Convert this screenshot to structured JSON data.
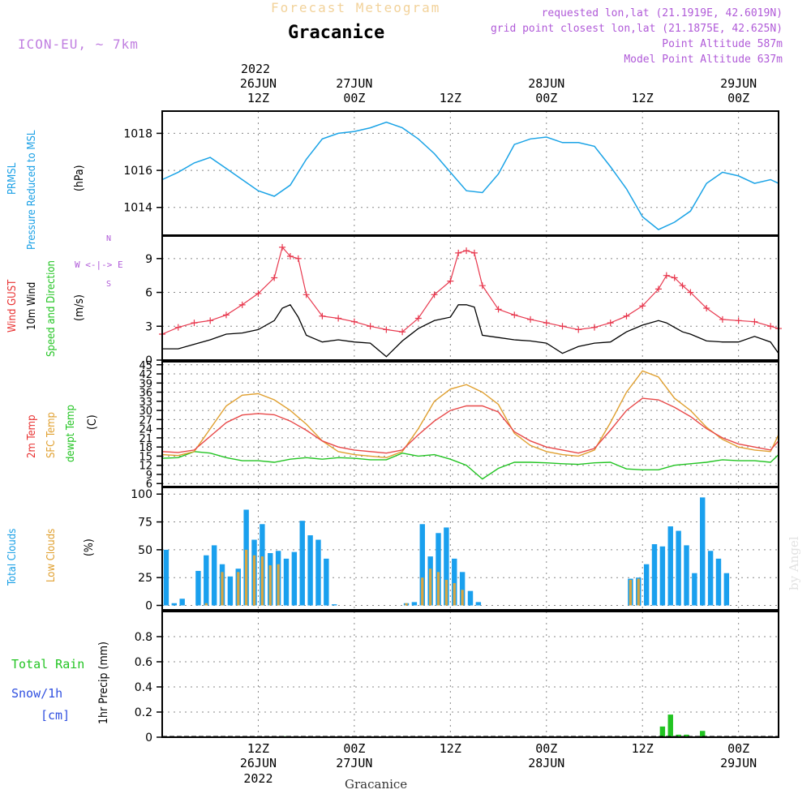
{
  "header": {
    "subtitle": "Forecast Meteogram",
    "station": "Gracanice",
    "model": "ICON-EU, ~ 7km",
    "info": [
      "requested lon,lat (21.1919E, 42.6019N)",
      "grid point closest lon,lat (21.1875E, 42.625N)",
      "Point Altitude 587m",
      "Model Point Altitude 637m"
    ],
    "watermark": "by Angel",
    "footer": "Gracanice"
  },
  "time_axis": {
    "top_year": "2022",
    "ticks": [
      {
        "h": 12,
        "time": "12Z",
        "date": "26JUN",
        "year": "2022"
      },
      {
        "h": 24,
        "time": "00Z",
        "date": "27JUN",
        "year": ""
      },
      {
        "h": 36,
        "time": "12Z",
        "date": "",
        "year": ""
      },
      {
        "h": 48,
        "time": "00Z",
        "date": "28JUN",
        "year": ""
      },
      {
        "h": 60,
        "time": "12Z",
        "date": "",
        "year": ""
      },
      {
        "h": 72,
        "time": "00Z",
        "date": "29JUN",
        "year": ""
      }
    ],
    "range_hours": [
      0,
      77
    ]
  },
  "panel_labels": {
    "pressure": {
      "name1": "PRMSL",
      "name2": "Pressure Reduced to MSL",
      "unit": "(hPa)"
    },
    "wind": {
      "gust": "Wind GUST",
      "wind": "10m Wind",
      "dir": "Speed and Direction",
      "unit": "(m/s)",
      "compass_ns": "N",
      "compass_we": "W <-|-> E",
      "compass_s": "S"
    },
    "temp": {
      "t2m": "2m Temp",
      "sfc": "SFC Temp",
      "dew": "dewpt Temp",
      "unit": "(C)"
    },
    "clouds": {
      "total": "Total Clouds",
      "low": "Low Clouds",
      "unit": "(%)"
    },
    "precip": {
      "rain": "Total  Rain",
      "snow": "Snow/1h",
      "snow_unit": "[cm]",
      "axis": "1hr Precip (mm)"
    }
  },
  "colors": {
    "pressure": "#1aa3e6",
    "gust": "#e8384e",
    "wind": "#000000",
    "t2m": "#e84848",
    "sfc": "#e0a030",
    "dew": "#22c422",
    "total_clouds": "#1aa0ee",
    "low_clouds": "#d9a640",
    "rain": "#22c422",
    "snow": "#3050e0",
    "grid": "#888888",
    "label_green": "#22c422",
    "label_blue": "#1aa0e6",
    "label_red": "#e83030",
    "label_orange": "#e0a030",
    "label_purple": "#b05ad8"
  },
  "chart_data": [
    {
      "type": "line",
      "id": "pressure",
      "title": "PRMSL Pressure Reduced to MSL",
      "ylabel": "(hPa)",
      "ylim": [
        1012.5,
        1019.2
      ],
      "yticks": [
        1014,
        1016,
        1018
      ],
      "x": [
        0,
        2,
        4,
        6,
        8,
        10,
        12,
        14,
        16,
        18,
        20,
        22,
        24,
        26,
        28,
        30,
        32,
        34,
        36,
        38,
        40,
        42,
        44,
        46,
        48,
        50,
        52,
        54,
        56,
        58,
        60,
        62,
        64,
        66,
        68,
        70,
        72,
        74,
        76,
        77
      ],
      "series": [
        {
          "name": "PRMSL",
          "values": [
            1015.5,
            1015.9,
            1016.4,
            1016.7,
            1016.1,
            1015.5,
            1014.9,
            1014.6,
            1015.2,
            1016.6,
            1017.7,
            1018.0,
            1018.1,
            1018.3,
            1018.6,
            1018.3,
            1017.7,
            1016.9,
            1015.9,
            1014.9,
            1014.8,
            1015.8,
            1017.4,
            1017.7,
            1017.8,
            1017.5,
            1017.5,
            1017.3,
            1016.2,
            1015.0,
            1013.5,
            1012.8,
            1013.2,
            1013.8,
            1015.3,
            1015.9,
            1015.7,
            1015.3,
            1015.5,
            1015.3
          ]
        }
      ]
    },
    {
      "type": "line",
      "id": "wind",
      "title": "Wind GUST / 10m Wind",
      "ylabel": "(m/s)",
      "ylim": [
        0,
        11
      ],
      "yticks": [
        0,
        3,
        6,
        9
      ],
      "x": [
        0,
        2,
        4,
        6,
        8,
        10,
        12,
        14,
        15,
        16,
        17,
        18,
        20,
        22,
        24,
        26,
        28,
        30,
        32,
        34,
        36,
        37,
        38,
        39,
        40,
        42,
        44,
        46,
        48,
        50,
        52,
        54,
        56,
        58,
        60,
        62,
        63,
        64,
        65,
        66,
        68,
        70,
        72,
        74,
        76,
        77
      ],
      "series": [
        {
          "name": "Wind GUST",
          "values": [
            2.3,
            2.9,
            3.3,
            3.5,
            4.0,
            4.9,
            5.9,
            7.3,
            10.0,
            9.2,
            9.0,
            5.8,
            3.9,
            3.7,
            3.4,
            3.0,
            2.7,
            2.5,
            3.7,
            5.8,
            7.0,
            9.5,
            9.7,
            9.5,
            6.6,
            4.5,
            4.0,
            3.6,
            3.3,
            3.0,
            2.7,
            2.9,
            3.3,
            3.9,
            4.8,
            6.3,
            7.5,
            7.3,
            6.6,
            6.0,
            4.6,
            3.6,
            3.5,
            3.4,
            3.0,
            2.8
          ]
        },
        {
          "name": "10m Wind",
          "values": [
            1.0,
            1.0,
            1.4,
            1.8,
            2.3,
            2.4,
            2.7,
            3.5,
            4.6,
            4.9,
            3.8,
            2.2,
            1.6,
            1.8,
            1.6,
            1.5,
            0.3,
            1.7,
            2.8,
            3.5,
            3.8,
            4.9,
            4.9,
            4.7,
            2.2,
            2.0,
            1.8,
            1.7,
            1.5,
            0.6,
            1.2,
            1.5,
            1.6,
            2.5,
            3.1,
            3.5,
            3.3,
            2.9,
            2.5,
            2.3,
            1.7,
            1.6,
            1.6,
            2.1,
            1.6,
            0.6
          ]
        }
      ]
    },
    {
      "type": "line",
      "id": "temperature",
      "title": "2m Temp / SFC Temp / dewpt Temp",
      "ylabel": "(C)",
      "ylim": [
        5,
        46
      ],
      "yticks": [
        6,
        9,
        12,
        15,
        18,
        21,
        24,
        27,
        30,
        33,
        36,
        39,
        42,
        45
      ],
      "x": [
        0,
        2,
        4,
        6,
        8,
        10,
        12,
        14,
        16,
        18,
        20,
        22,
        24,
        26,
        28,
        30,
        32,
        34,
        36,
        38,
        40,
        42,
        44,
        46,
        48,
        50,
        52,
        54,
        56,
        58,
        60,
        62,
        64,
        66,
        68,
        70,
        72,
        74,
        76,
        77
      ],
      "series": [
        {
          "name": "2m Temp",
          "values": [
            16.5,
            16.2,
            17.0,
            21.5,
            26.0,
            28.5,
            29.0,
            28.6,
            26.5,
            23.5,
            20.0,
            18.0,
            17.0,
            16.5,
            16.0,
            17.0,
            22.0,
            26.5,
            30.0,
            31.5,
            31.5,
            29.5,
            23.0,
            20.0,
            18.0,
            17.0,
            16.0,
            17.5,
            23.5,
            30.0,
            34.0,
            33.5,
            31.0,
            28.0,
            24.0,
            21.0,
            19.0,
            18.0,
            17.0,
            20.0
          ]
        },
        {
          "name": "SFC Temp",
          "values": [
            15.5,
            15.2,
            16.5,
            24.0,
            31.5,
            35.0,
            35.5,
            33.5,
            30.0,
            25.5,
            20.0,
            16.5,
            15.5,
            15.0,
            14.5,
            16.5,
            24.0,
            33.0,
            37.0,
            38.5,
            36.0,
            32.0,
            22.5,
            18.5,
            16.5,
            15.5,
            15.0,
            17.0,
            26.0,
            36.0,
            43.0,
            41.0,
            34.0,
            30.0,
            24.5,
            20.5,
            18.0,
            17.0,
            16.5,
            22.0
          ]
        },
        {
          "name": "dewpt Temp",
          "values": [
            14.3,
            14.5,
            16.5,
            16.0,
            14.5,
            13.5,
            13.5,
            13.0,
            14.0,
            14.5,
            14.0,
            14.5,
            14.3,
            13.8,
            13.8,
            16.0,
            15.0,
            15.5,
            14.0,
            12.0,
            7.5,
            11.0,
            13.0,
            13.0,
            12.8,
            12.5,
            12.3,
            12.8,
            13.0,
            10.8,
            10.5,
            10.5,
            12.0,
            12.5,
            13.0,
            13.8,
            13.5,
            13.5,
            13.0,
            15.5
          ]
        }
      ]
    },
    {
      "type": "bar",
      "id": "clouds",
      "title": "Total Clouds / Low Clouds",
      "ylabel": "(%)",
      "ylim": [
        -4,
        106
      ],
      "yticks": [
        0,
        25,
        50,
        75,
        100
      ],
      "x": [
        0,
        1,
        2,
        3,
        4,
        5,
        6,
        7,
        8,
        9,
        10,
        11,
        12,
        13,
        14,
        15,
        16,
        17,
        18,
        19,
        20,
        21,
        22,
        23,
        24,
        25,
        26,
        27,
        28,
        29,
        30,
        31,
        32,
        33,
        34,
        35,
        36,
        37,
        38,
        39,
        40,
        41,
        42,
        43,
        44,
        45,
        46,
        47,
        48,
        49,
        50,
        51,
        52,
        53,
        54,
        55,
        56,
        57,
        58,
        59,
        60,
        61,
        62,
        63,
        64,
        65,
        66,
        67,
        68,
        69,
        70,
        71,
        72,
        73,
        74,
        75,
        76,
        77
      ],
      "series": [
        {
          "name": "Total Clouds",
          "values": [
            50,
            2,
            6,
            0,
            31,
            45,
            54,
            37,
            26,
            33,
            86,
            59,
            73,
            47,
            49,
            42,
            48,
            76,
            63,
            59,
            42,
            1,
            0,
            0,
            0,
            0,
            0,
            0,
            0,
            0,
            2,
            3,
            73,
            44,
            65,
            70,
            42,
            30,
            13,
            3,
            0,
            0,
            0,
            0,
            0,
            0,
            0,
            0,
            0,
            0,
            0,
            0,
            0,
            0,
            0,
            0,
            0,
            0,
            24,
            25,
            37,
            55,
            53,
            71,
            67,
            54,
            29,
            97,
            49,
            42,
            29,
            0,
            0,
            0,
            0,
            0,
            0,
            0
          ]
        },
        {
          "name": "Low Clouds",
          "values": [
            0,
            0,
            0,
            0,
            0,
            2,
            0,
            30,
            0,
            30,
            50,
            45,
            44,
            36,
            37,
            0,
            0,
            0,
            0,
            0,
            0,
            0,
            0,
            0,
            0,
            0,
            0,
            0,
            0,
            0,
            2,
            0,
            25,
            33,
            30,
            23,
            20,
            14,
            0,
            0,
            0,
            0,
            0,
            0,
            0,
            0,
            0,
            0,
            0,
            0,
            0,
            0,
            0,
            0,
            0,
            0,
            0,
            0,
            23,
            24,
            0,
            0,
            0,
            0,
            0,
            0,
            0,
            0,
            0,
            0,
            0,
            0,
            0,
            0,
            0,
            0,
            0,
            0
          ]
        }
      ]
    },
    {
      "type": "bar",
      "id": "precip",
      "title": "1hr Precip (mm)",
      "ylabel": "1hr Precip (mm)",
      "ylim": [
        0,
        1.0
      ],
      "yticks": [
        0,
        0.2,
        0.4,
        0.6,
        0.8
      ],
      "x": [
        15,
        62,
        63,
        64,
        65,
        67
      ],
      "series": [
        {
          "name": "Total Rain",
          "values": [
            0.008,
            0.085,
            0.18,
            0.02,
            0.02,
            0.05
          ]
        }
      ]
    }
  ]
}
